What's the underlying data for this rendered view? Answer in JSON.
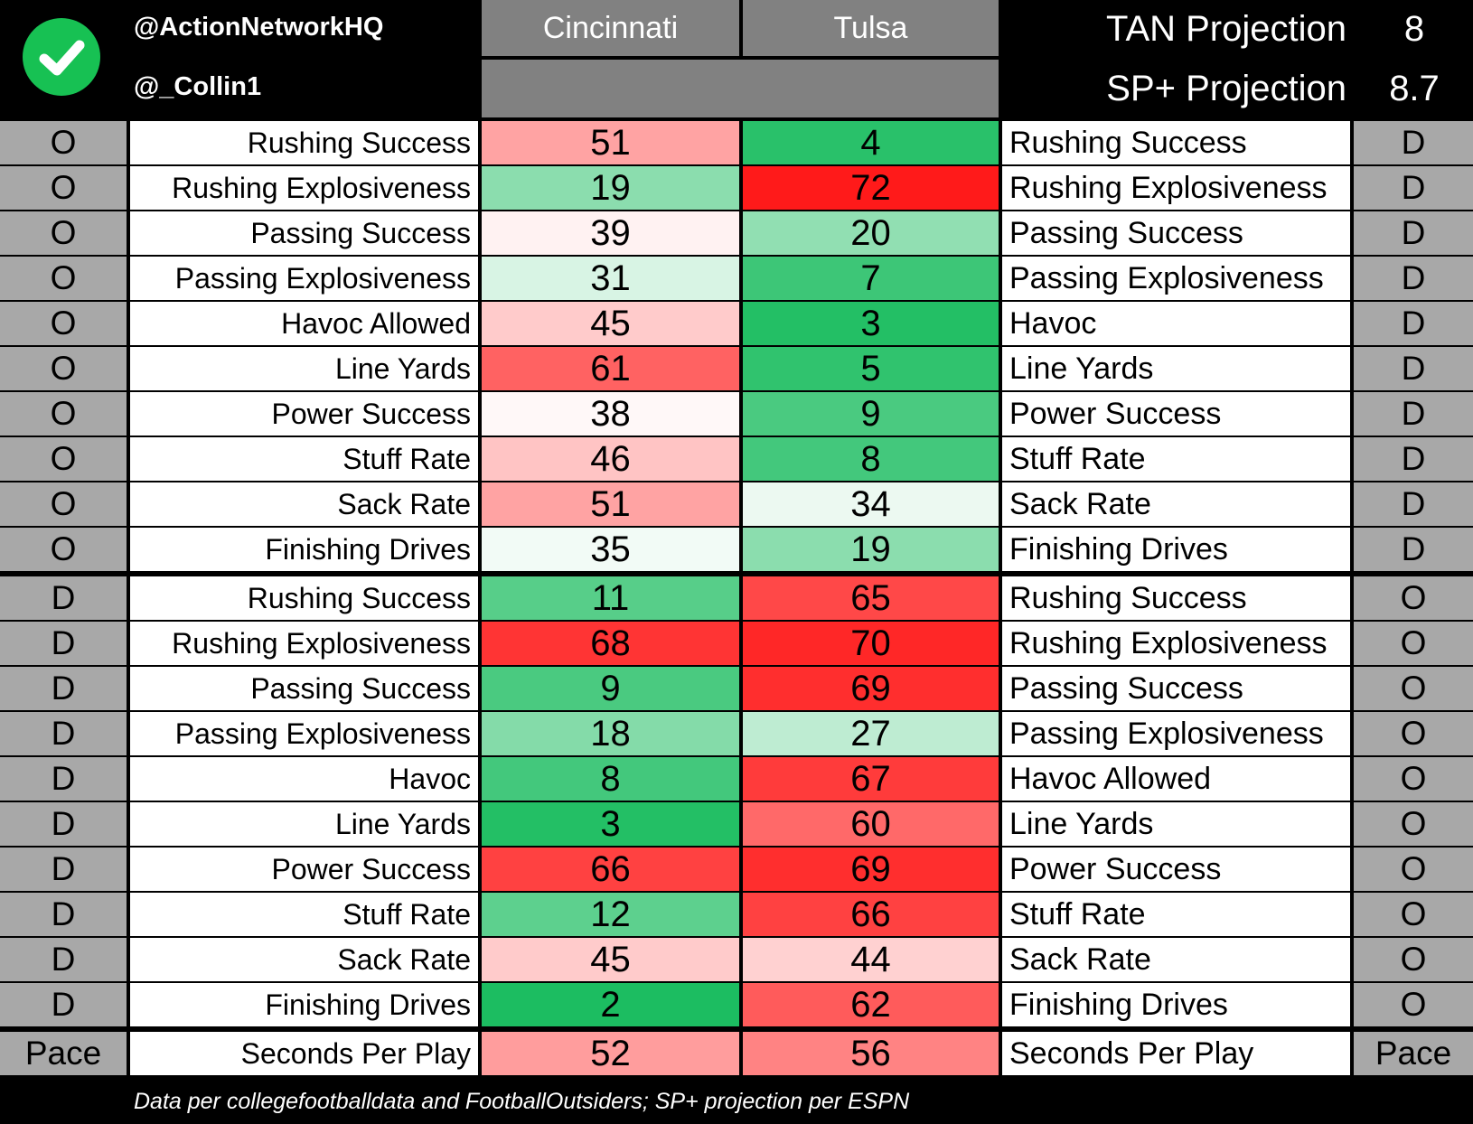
{
  "header": {
    "handle_1": "@ActionNetworkHQ",
    "handle_2": "@_Collin1",
    "team_1": "Cincinnati",
    "team_2": "Tulsa",
    "projections": [
      {
        "label": "TAN Projection",
        "value": "8"
      },
      {
        "label": "SP+ Projection",
        "value": "8.7"
      }
    ],
    "logo_icon": "checkmark-icon",
    "logo_color": "#17c153"
  },
  "sections": [
    {
      "left_side": "O",
      "right_side": "D",
      "rows": [
        {
          "left_label": "Rushing Success",
          "team_1_value": "51",
          "team_2_value": "4",
          "right_label": "Rushing Success"
        },
        {
          "left_label": "Rushing Explosiveness",
          "team_1_value": "19",
          "team_2_value": "72",
          "right_label": "Rushing Explosiveness"
        },
        {
          "left_label": "Passing Success",
          "team_1_value": "39",
          "team_2_value": "20",
          "right_label": "Passing Success"
        },
        {
          "left_label": "Passing Explosiveness",
          "team_1_value": "31",
          "team_2_value": "7",
          "right_label": "Passing Explosiveness"
        },
        {
          "left_label": "Havoc Allowed",
          "team_1_value": "45",
          "team_2_value": "3",
          "right_label": "Havoc"
        },
        {
          "left_label": "Line Yards",
          "team_1_value": "61",
          "team_2_value": "5",
          "right_label": "Line Yards"
        },
        {
          "left_label": "Power Success",
          "team_1_value": "38",
          "team_2_value": "9",
          "right_label": "Power Success"
        },
        {
          "left_label": "Stuff Rate",
          "team_1_value": "46",
          "team_2_value": "8",
          "right_label": "Stuff Rate"
        },
        {
          "left_label": "Sack Rate",
          "team_1_value": "51",
          "team_2_value": "34",
          "right_label": "Sack Rate"
        },
        {
          "left_label": "Finishing Drives",
          "team_1_value": "35",
          "team_2_value": "19",
          "right_label": "Finishing Drives"
        }
      ]
    },
    {
      "left_side": "D",
      "right_side": "O",
      "rows": [
        {
          "left_label": "Rushing Success",
          "team_1_value": "11",
          "team_2_value": "65",
          "right_label": "Rushing Success"
        },
        {
          "left_label": "Rushing Explosiveness",
          "team_1_value": "68",
          "team_2_value": "70",
          "right_label": "Rushing Explosiveness"
        },
        {
          "left_label": "Passing Success",
          "team_1_value": "9",
          "team_2_value": "69",
          "right_label": "Passing Success"
        },
        {
          "left_label": "Passing Explosiveness",
          "team_1_value": "18",
          "team_2_value": "27",
          "right_label": "Passing Explosiveness"
        },
        {
          "left_label": "Havoc",
          "team_1_value": "8",
          "team_2_value": "67",
          "right_label": "Havoc Allowed"
        },
        {
          "left_label": "Line Yards",
          "team_1_value": "3",
          "team_2_value": "60",
          "right_label": "Line Yards"
        },
        {
          "left_label": "Power Success",
          "team_1_value": "66",
          "team_2_value": "69",
          "right_label": "Power Success"
        },
        {
          "left_label": "Stuff Rate",
          "team_1_value": "12",
          "team_2_value": "66",
          "right_label": "Stuff Rate"
        },
        {
          "left_label": "Sack Rate",
          "team_1_value": "45",
          "team_2_value": "44",
          "right_label": "Sack Rate"
        },
        {
          "left_label": "Finishing Drives",
          "team_1_value": "2",
          "team_2_value": "62",
          "right_label": "Finishing Drives"
        }
      ]
    },
    {
      "left_side": "Pace",
      "right_side": "Pace",
      "rows": [
        {
          "left_label": "Seconds Per Play",
          "team_1_value": "52",
          "team_2_value": "56",
          "right_label": "Seconds Per Play"
        }
      ]
    }
  ],
  "scale_colors": {
    "best": "#16bb5c",
    "middle": "#ffffff",
    "worst": "#ff1a1a"
  },
  "footer": "Data per collegefootballdata and FootballOutsiders; SP+ projection per ESPN"
}
